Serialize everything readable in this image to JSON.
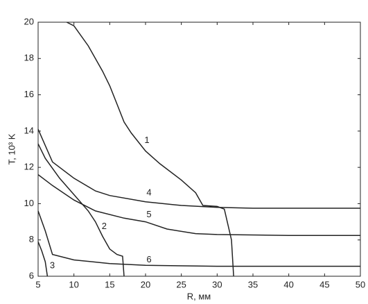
{
  "chart_data": {
    "type": "line",
    "xlabel": "R, мм",
    "ylabel": "T, 10³ K",
    "xlim": [
      5,
      50
    ],
    "ylim": [
      6,
      20
    ],
    "xticks": [
      5,
      10,
      15,
      20,
      25,
      30,
      35,
      40,
      45,
      50
    ],
    "yticks": [
      6,
      8,
      10,
      12,
      14,
      16,
      18,
      20
    ],
    "grid": false,
    "series": [
      {
        "name": "1",
        "color": "#222222",
        "x": [
          9,
          10,
          12,
          14,
          15,
          16,
          17,
          18,
          20,
          22,
          25,
          27,
          28,
          30,
          31,
          32,
          32.3
        ],
        "values": [
          20,
          19.8,
          18.7,
          17.3,
          16.5,
          15.5,
          14.5,
          13.9,
          12.9,
          12.2,
          11.3,
          10.6,
          9.9,
          9.85,
          9.7,
          8,
          6
        ]
      },
      {
        "name": "2",
        "color": "#222222",
        "x": [
          5,
          6,
          8,
          10,
          12,
          13,
          14,
          15,
          16,
          16.8,
          17
        ],
        "values": [
          13.3,
          12.5,
          11.4,
          10.5,
          9.6,
          9.0,
          8.2,
          7.5,
          7.2,
          7.1,
          6
        ]
      },
      {
        "name": "3",
        "color": "#222222",
        "x": [
          5,
          5.5,
          6,
          6.3
        ],
        "values": [
          7.9,
          7.4,
          6.8,
          6
        ]
      },
      {
        "name": "4",
        "color": "#222222",
        "x": [
          5,
          7,
          10,
          13,
          15,
          20,
          25,
          30,
          35,
          50
        ],
        "values": [
          14.1,
          12.3,
          11.4,
          10.7,
          10.45,
          10.1,
          9.9,
          9.8,
          9.75,
          9.75
        ]
      },
      {
        "name": "5",
        "color": "#222222",
        "x": [
          5,
          7,
          10,
          13,
          17,
          20,
          23,
          27,
          30,
          40,
          50
        ],
        "values": [
          11.6,
          11.0,
          10.2,
          9.6,
          9.2,
          9.0,
          8.6,
          8.35,
          8.3,
          8.25,
          8.25
        ]
      },
      {
        "name": "6",
        "color": "#222222",
        "x": [
          5,
          6,
          7,
          10,
          15,
          20,
          30,
          50
        ],
        "values": [
          9.6,
          8.5,
          7.2,
          6.9,
          6.7,
          6.6,
          6.55,
          6.55
        ]
      }
    ]
  }
}
